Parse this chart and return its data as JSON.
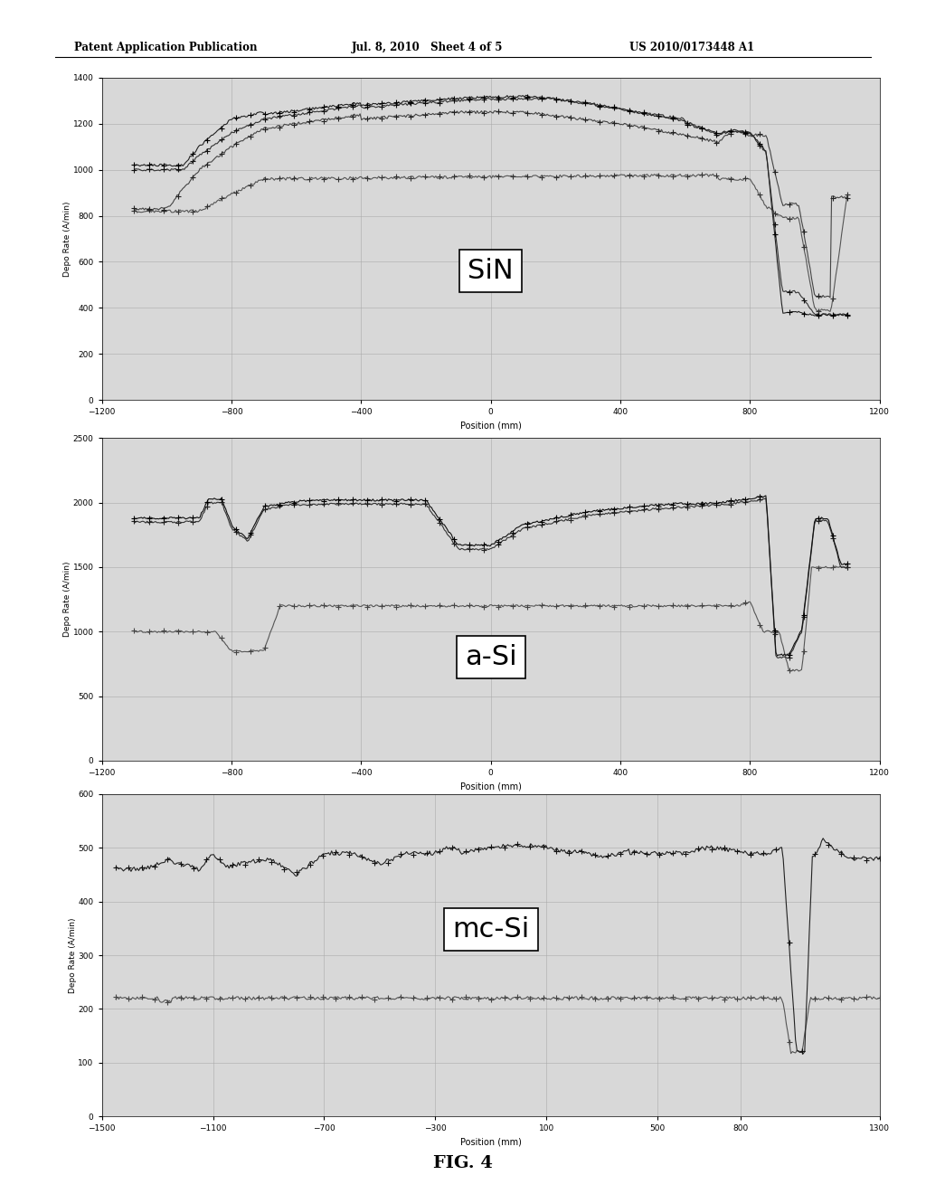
{
  "header_left": "Patent Application Publication",
  "header_mid": "Jul. 8, 2010   Sheet 4 of 5",
  "header_right": "US 2010/0173448 A1",
  "footer_label": "FIG. 4",
  "bg_color": "#ffffff",
  "plot_bg": "#d8d8d8",
  "chart1": {
    "label": "SiN",
    "xlabel": "Position (mm)",
    "ylabel": "Depo Rate (A/min)",
    "xlim": [
      -1200,
      1200
    ],
    "ylim": [
      0,
      1400
    ],
    "xticks": [
      -1200,
      -800,
      -400,
      0,
      400,
      800,
      1200
    ],
    "yticks": [
      0,
      200,
      400,
      600,
      800,
      1000,
      1200,
      1400
    ]
  },
  "chart2": {
    "label": "a-Si",
    "xlabel": "Position (mm)",
    "ylabel": "Depo Rate (A/min)",
    "xlim": [
      -1200,
      1200
    ],
    "ylim": [
      0,
      2500
    ],
    "xticks": [
      -1200,
      -800,
      -400,
      0,
      400,
      800,
      1200
    ],
    "yticks": [
      0,
      500,
      1000,
      1500,
      2000,
      2500
    ]
  },
  "chart3": {
    "label": "mc-Si",
    "xlabel": "Position (mm)",
    "ylabel": "Depo Rate (A/min)",
    "xlim": [
      -1500,
      1300
    ],
    "ylim": [
      0,
      600
    ],
    "xticks": [
      -1500,
      -1100,
      -700,
      -300,
      100,
      500,
      800,
      1300
    ],
    "yticks": [
      0,
      100,
      200,
      300,
      400,
      500,
      600
    ]
  }
}
